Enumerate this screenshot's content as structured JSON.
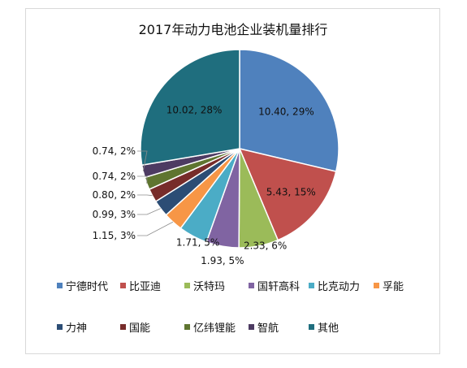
{
  "chart_data": {
    "type": "pie",
    "title": "2017年动力电池企业装机量排行",
    "categories": [
      "宁德时代",
      "比亚迪",
      "沃特玛",
      "国轩高科",
      "比克动力",
      "孚能",
      "力神",
      "国能",
      "亿纬锂能",
      "智航",
      "其他"
    ],
    "values": [
      10.4,
      5.43,
      2.33,
      1.93,
      1.71,
      1.15,
      0.99,
      0.8,
      0.74,
      0.74,
      10.02
    ],
    "data_labels": [
      "10.40, 29%",
      "5.43, 15%",
      "2.33, 6%",
      "1.93, 5%",
      "1.71, 5%",
      "1.15, 3%",
      "0.99, 3%",
      "0.80, 2%",
      "0.74, 2%",
      "0.74, 2%",
      "10.02, 28%"
    ],
    "colors": [
      "#4F81BD",
      "#C0504D",
      "#9BBB59",
      "#8064A2",
      "#4BACC6",
      "#F79646",
      "#2C4D75",
      "#772C2A",
      "#5F7530",
      "#4D3B62",
      "#1F6E7E"
    ],
    "legend_position": "bottom",
    "start_angle_deg": 0,
    "direction": "clockwise"
  }
}
